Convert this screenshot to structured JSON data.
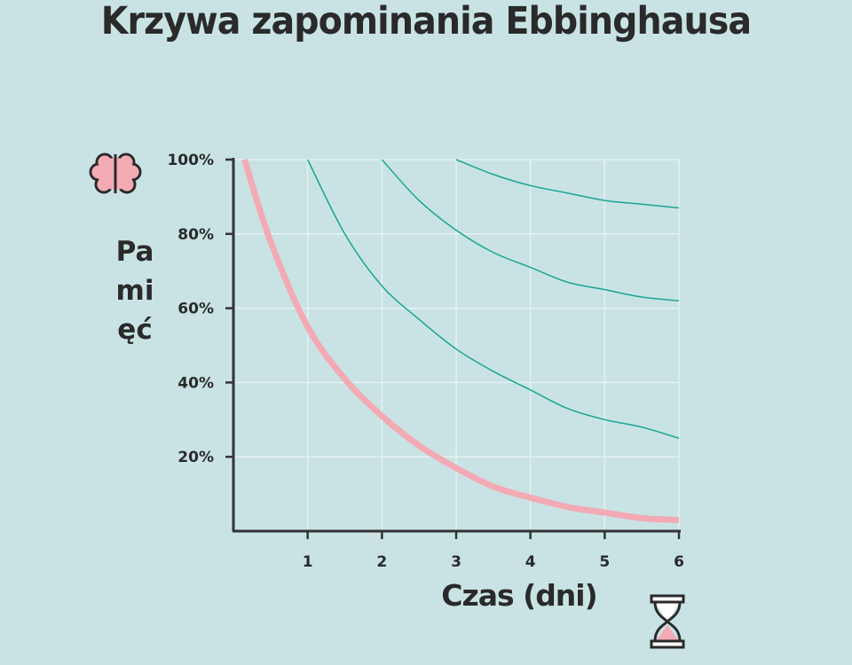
{
  "chart_data": {
    "type": "line",
    "title": "Krzywa zapominania Ebbinghausa",
    "xlabel": "Czas (dni)",
    "ylabel": "Pamięć",
    "xlim": [
      0,
      6
    ],
    "ylim": [
      0,
      100
    ],
    "x_ticks": [
      "1",
      "2",
      "3",
      "4",
      "5",
      "6"
    ],
    "y_ticks": [
      "20%",
      "40%",
      "60%",
      "80%",
      "100%"
    ],
    "grid": true,
    "series": [
      {
        "color": "#f3aab4",
        "x": [
          0.15,
          0.5,
          1,
          1.5,
          2,
          2.5,
          3,
          3.5,
          4,
          4.5,
          5,
          5.5,
          6
        ],
        "y": [
          100,
          78,
          55,
          41,
          31,
          23,
          17,
          12,
          9,
          6.5,
          5,
          3.5,
          3
        ]
      },
      {
        "color": "#1aa592",
        "x": [
          1,
          1.5,
          2,
          2.5,
          3,
          3.5,
          4,
          4.5,
          5,
          5.5,
          6
        ],
        "y": [
          100,
          80,
          66,
          57,
          49,
          43,
          38,
          33,
          30,
          28,
          25
        ]
      },
      {
        "color": "#1aa592",
        "x": [
          2,
          2.5,
          3,
          3.5,
          4,
          4.5,
          5,
          5.5,
          6
        ],
        "y": [
          100,
          89,
          81,
          75,
          71,
          67,
          65,
          63,
          62
        ]
      },
      {
        "color": "#1aa592",
        "x": [
          3,
          3.5,
          4,
          4.5,
          5,
          5.5,
          6
        ],
        "y": [
          100,
          96,
          93,
          91,
          89,
          88,
          87
        ]
      }
    ],
    "icons": [
      "brain-icon",
      "hourglass-icon"
    ]
  }
}
